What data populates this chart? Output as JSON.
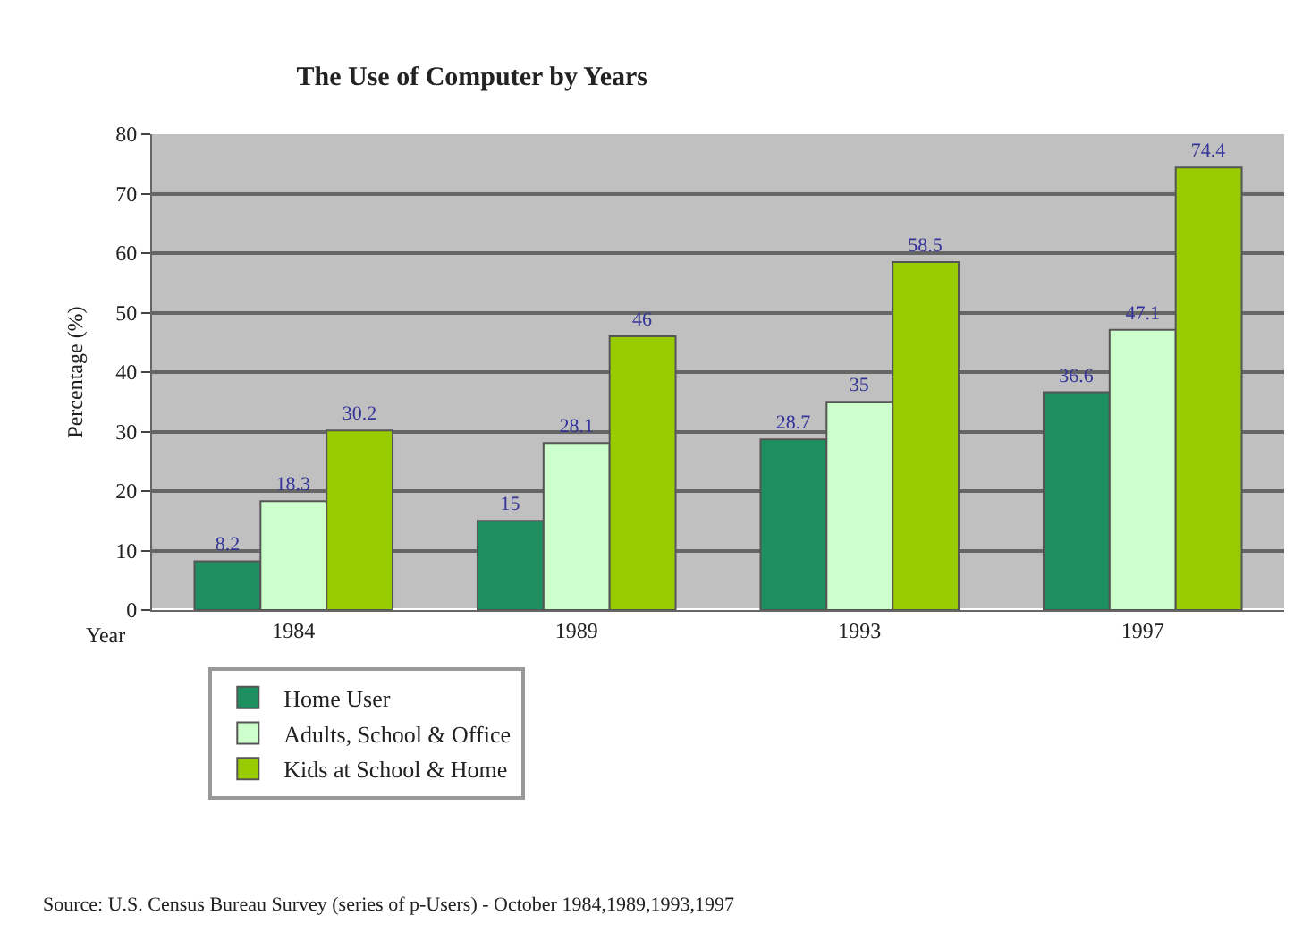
{
  "chart_data": {
    "type": "bar",
    "title": "The Use of Computer by Years",
    "xlabel": "Year",
    "ylabel": "Percentage (%)",
    "categories": [
      "1984",
      "1989",
      "1993",
      "1997"
    ],
    "series": [
      {
        "name": "Home User",
        "color": "#1e9060",
        "values": [
          8.2,
          15,
          28.7,
          36.6
        ]
      },
      {
        "name": "Adults, School & Office",
        "color": "#ccffcc",
        "values": [
          18.3,
          28.1,
          35,
          47.1
        ]
      },
      {
        "name": "Kids at School & Home",
        "color": "#99cc00",
        "values": [
          30.2,
          46,
          58.5,
          74.4
        ]
      }
    ],
    "ylim": [
      0,
      80
    ],
    "yticks": [
      0,
      10,
      20,
      30,
      40,
      50,
      60,
      70,
      80
    ],
    "grid": "y",
    "legend": "bottom",
    "data_labels": true,
    "annotations": [
      "Source: U.S. Census Bureau Survey (series of p-Users) - October 1984,1989,1993,1997"
    ]
  }
}
